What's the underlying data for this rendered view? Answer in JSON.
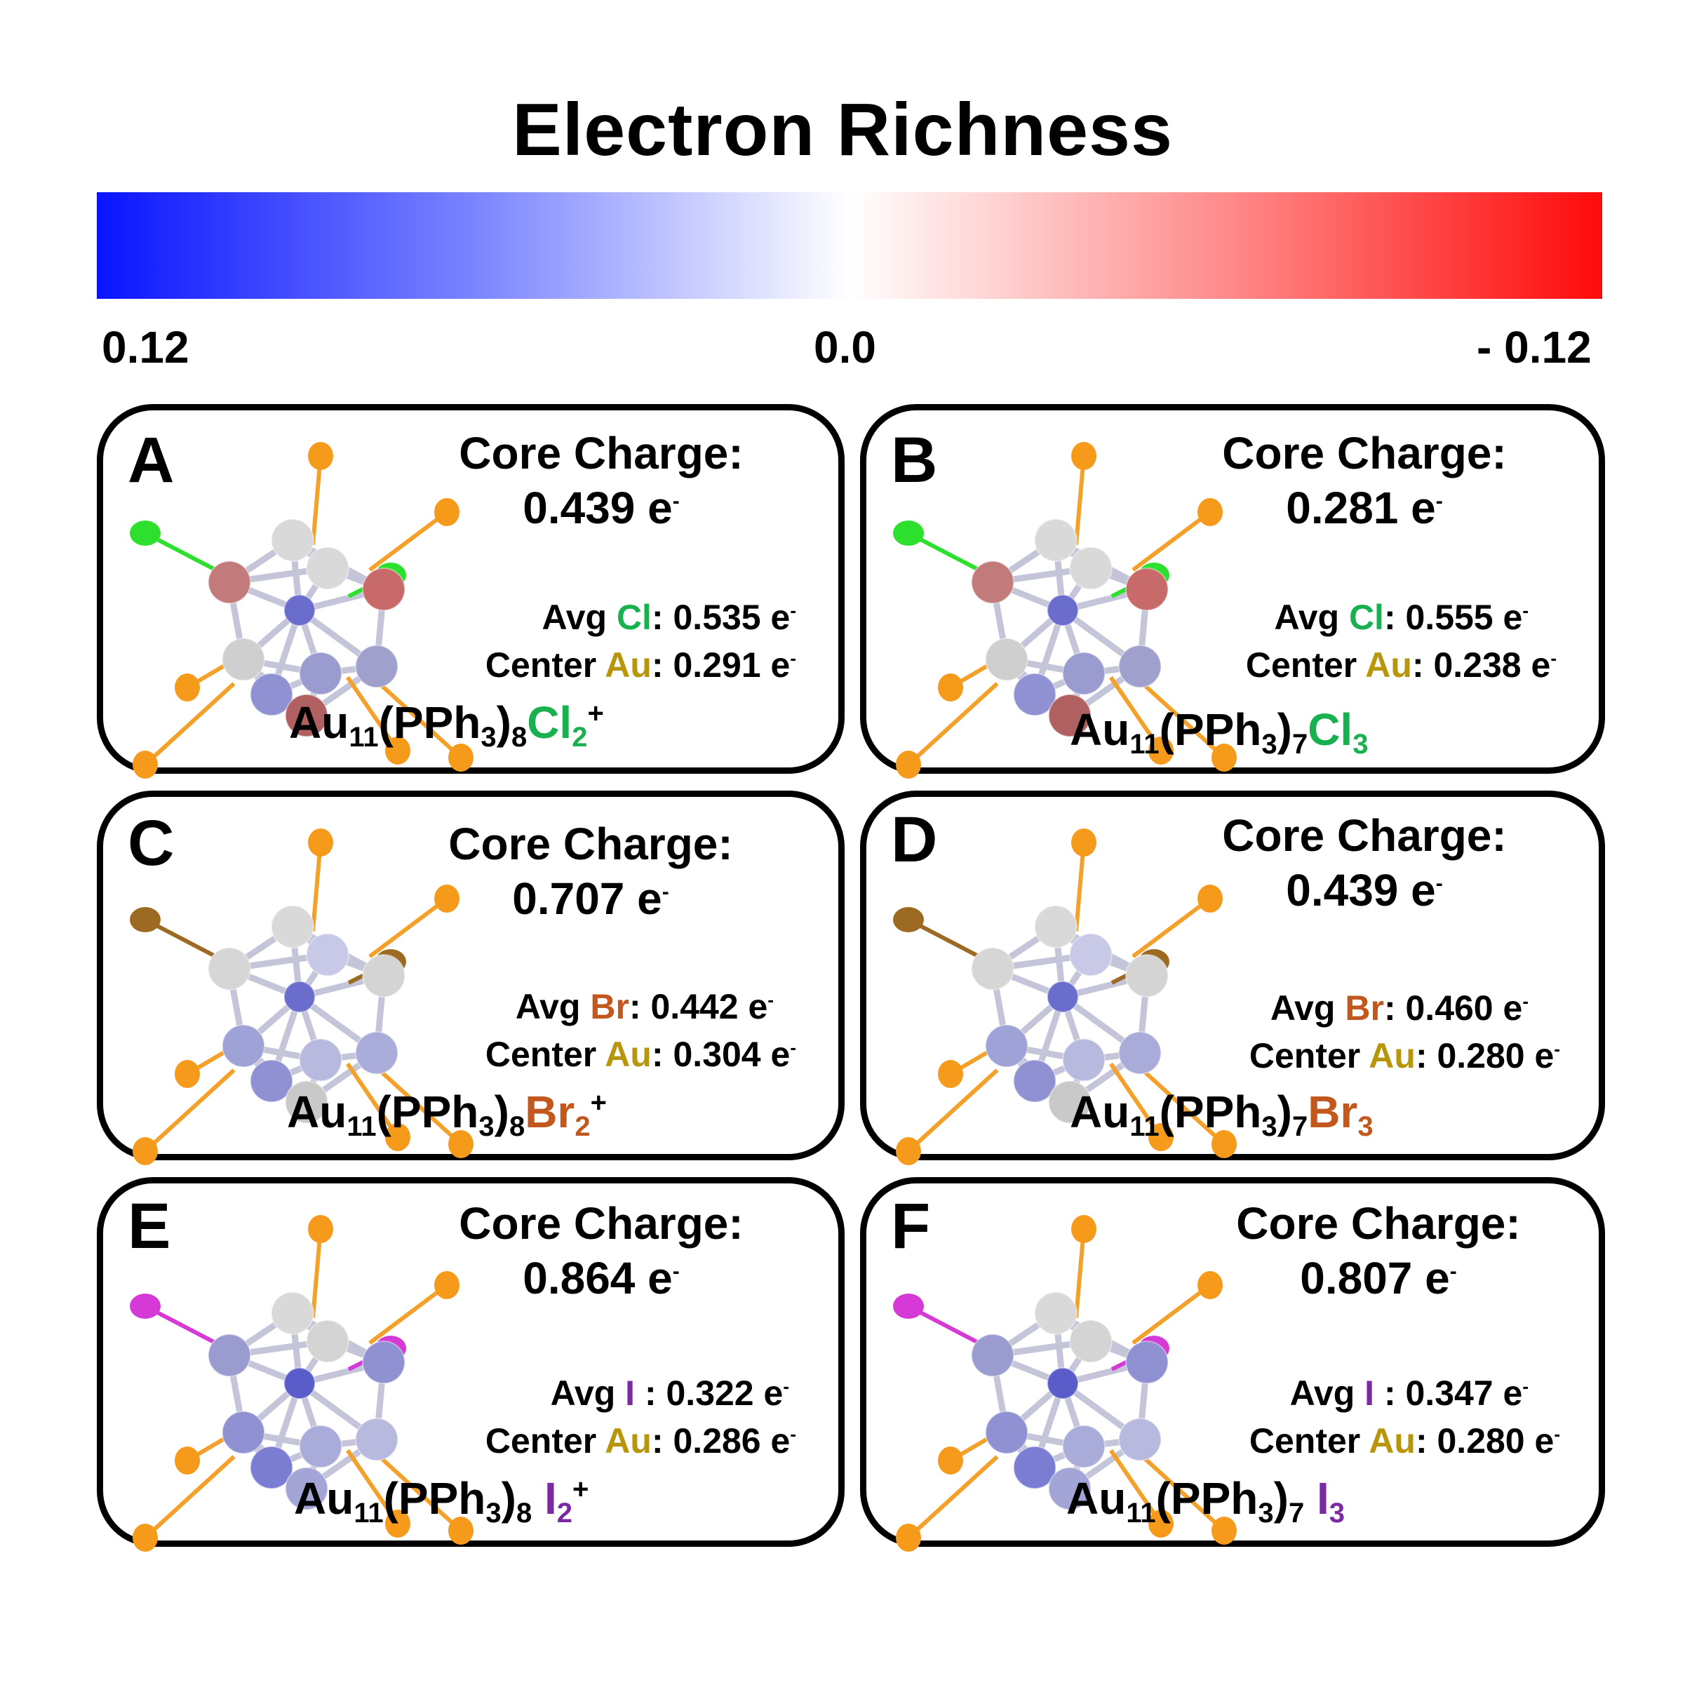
{
  "title": "Electron Richness",
  "colorbar": {
    "left_label": "0.12",
    "mid_label": "0.0",
    "right_label": "- 0.12",
    "colors": [
      "#0a14ff",
      "#ffffff",
      "#ff0a0a"
    ]
  },
  "panels": [
    {
      "letter": "A",
      "cc_label": "Core Charge:",
      "cc_value": "0.439 e",
      "e_sup": "-",
      "halide_label": "Cl",
      "halide_value": ": 0.535 e",
      "avg": "Avg ",
      "center": "Center ",
      "au": "Au",
      "au_value": ": 0.291 e",
      "formula": {
        "p1": "Au",
        "s1": "11",
        "p2": "(PPh",
        "s2": "3",
        "p3": ")",
        "s3": "8",
        "hal": "Cl",
        "s4": "2",
        "charge": "+"
      }
    },
    {
      "letter": "B",
      "cc_label": "Core Charge:",
      "cc_value": "0.281 e",
      "e_sup": "-",
      "halide_label": "Cl",
      "halide_value": ": 0.555 e",
      "avg": "Avg ",
      "center": "Center ",
      "au": "Au",
      "au_value": ": 0.238 e",
      "formula": {
        "p1": "Au",
        "s1": "11",
        "p2": "(PPh",
        "s2": "3",
        "p3": ")",
        "s3": "7",
        "hal": "Cl",
        "s4": "3",
        "charge": ""
      }
    },
    {
      "letter": "C",
      "cc_label": "Core Charge:",
      "cc_value": "0.707 e",
      "e_sup": "-",
      "halide_label": "Br",
      "halide_value": ": 0.442 e",
      "avg": "Avg ",
      "center": "Center ",
      "au": "Au",
      "au_value": ": 0.304 e",
      "formula": {
        "p1": "Au",
        "s1": "11",
        "p2": "(PPh",
        "s2": "3",
        "p3": ")",
        "s3": "8",
        "hal": "Br",
        "s4": "2",
        "charge": "+"
      }
    },
    {
      "letter": "D",
      "cc_label": "Core Charge:",
      "cc_value": "0.439 e",
      "e_sup": "-",
      "halide_label": "Br",
      "halide_value": ": 0.460 e",
      "avg": "Avg ",
      "center": "Center ",
      "au": "Au",
      "au_value": ": 0.280 e",
      "formula": {
        "p1": "Au",
        "s1": "11",
        "p2": "(PPh",
        "s2": "3",
        "p3": ")",
        "s3": "7",
        "hal": "Br",
        "s4": "3",
        "charge": ""
      }
    },
    {
      "letter": "E",
      "cc_label": "Core Charge:",
      "cc_value": "0.864 e",
      "e_sup": "-",
      "halide_label": "I",
      "halide_value": " : 0.322 e",
      "avg": "Avg ",
      "center": "Center ",
      "au": "Au",
      "au_value": ": 0.286 e",
      "formula": {
        "p1": "Au",
        "s1": "11",
        "p2": "(PPh",
        "s2": "3",
        "p3": ")",
        "s3": "8",
        "hal": " I",
        "s4": "2",
        "charge": "+"
      }
    },
    {
      "letter": "F",
      "cc_label": "Core Charge:",
      "cc_value": "0.807 e",
      "e_sup": "-",
      "halide_label": "I",
      "halide_value": " : 0.347 e",
      "avg": "Avg ",
      "center": "Center ",
      "au": "Au",
      "au_value": ": 0.280 e",
      "formula": {
        "p1": "Au",
        "s1": "11",
        "p2": "(PPh",
        "s2": "3",
        "p3": ")",
        "s3": "7",
        "hal": " I",
        "s4": "3",
        "charge": ""
      }
    }
  ]
}
